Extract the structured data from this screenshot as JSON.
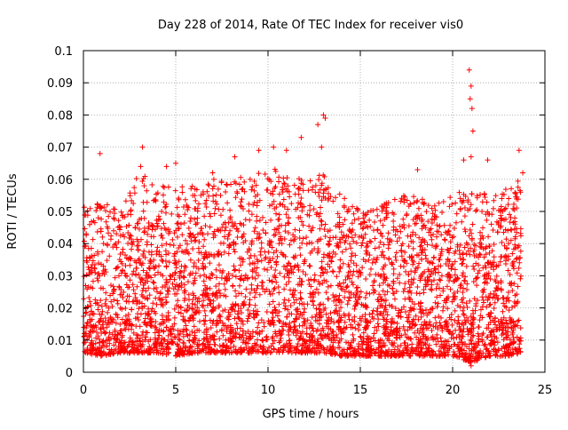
{
  "chart_data": {
    "type": "scatter",
    "title": "Day 228 of 2014, Rate Of TEC Index for receiver vis0",
    "xlabel": "GPS time / hours",
    "ylabel": "ROTI / TECUs",
    "xlim": [
      0,
      25
    ],
    "ylim": [
      0,
      0.1
    ],
    "xticks": [
      "0",
      "5",
      "10",
      "15",
      "20",
      "25"
    ],
    "yticks": [
      "0",
      "0.01",
      "0.02",
      "0.03",
      "0.04",
      "0.05",
      "0.06",
      "0.07",
      "0.08",
      "0.09",
      "0.1"
    ],
    "grid": true,
    "marker": "plus",
    "color": "#ff0000",
    "series": [
      {
        "x_range": [
          0.0,
          23.7
        ],
        "band_profile": [
          {
            "x": 0.0,
            "min": 0.006,
            "max": 0.052
          },
          {
            "x": 1.0,
            "min": 0.005,
            "max": 0.053
          },
          {
            "x": 2.0,
            "min": 0.006,
            "max": 0.05
          },
          {
            "x": 3.0,
            "min": 0.006,
            "max": 0.062
          },
          {
            "x": 4.0,
            "min": 0.006,
            "max": 0.06
          },
          {
            "x": 5.0,
            "min": 0.005,
            "max": 0.058
          },
          {
            "x": 6.0,
            "min": 0.006,
            "max": 0.06
          },
          {
            "x": 7.0,
            "min": 0.006,
            "max": 0.06
          },
          {
            "x": 8.0,
            "min": 0.006,
            "max": 0.062
          },
          {
            "x": 9.0,
            "min": 0.006,
            "max": 0.06
          },
          {
            "x": 10.0,
            "min": 0.006,
            "max": 0.064
          },
          {
            "x": 11.0,
            "min": 0.006,
            "max": 0.062
          },
          {
            "x": 12.0,
            "min": 0.006,
            "max": 0.06
          },
          {
            "x": 13.0,
            "min": 0.006,
            "max": 0.062
          },
          {
            "x": 14.0,
            "min": 0.005,
            "max": 0.055
          },
          {
            "x": 15.0,
            "min": 0.005,
            "max": 0.05
          },
          {
            "x": 16.0,
            "min": 0.005,
            "max": 0.052
          },
          {
            "x": 17.0,
            "min": 0.005,
            "max": 0.055
          },
          {
            "x": 18.0,
            "min": 0.005,
            "max": 0.055
          },
          {
            "x": 19.0,
            "min": 0.005,
            "max": 0.052
          },
          {
            "x": 20.0,
            "min": 0.005,
            "max": 0.055
          },
          {
            "x": 21.0,
            "min": 0.003,
            "max": 0.058
          },
          {
            "x": 22.0,
            "min": 0.005,
            "max": 0.055
          },
          {
            "x": 23.0,
            "min": 0.005,
            "max": 0.058
          },
          {
            "x": 23.7,
            "min": 0.006,
            "max": 0.06
          }
        ],
        "outliers": [
          {
            "x": 0.9,
            "y": 0.068
          },
          {
            "x": 3.2,
            "y": 0.07
          },
          {
            "x": 3.1,
            "y": 0.064
          },
          {
            "x": 4.5,
            "y": 0.064
          },
          {
            "x": 5.0,
            "y": 0.065
          },
          {
            "x": 7.0,
            "y": 0.062
          },
          {
            "x": 8.2,
            "y": 0.067
          },
          {
            "x": 9.5,
            "y": 0.069
          },
          {
            "x": 10.3,
            "y": 0.07
          },
          {
            "x": 11.0,
            "y": 0.069
          },
          {
            "x": 11.8,
            "y": 0.073
          },
          {
            "x": 12.7,
            "y": 0.077
          },
          {
            "x": 13.0,
            "y": 0.08
          },
          {
            "x": 13.1,
            "y": 0.079
          },
          {
            "x": 12.9,
            "y": 0.07
          },
          {
            "x": 18.1,
            "y": 0.063
          },
          {
            "x": 20.6,
            "y": 0.066
          },
          {
            "x": 20.9,
            "y": 0.094
          },
          {
            "x": 21.0,
            "y": 0.089
          },
          {
            "x": 20.95,
            "y": 0.085
          },
          {
            "x": 21.05,
            "y": 0.082
          },
          {
            "x": 21.1,
            "y": 0.075
          },
          {
            "x": 21.0,
            "y": 0.067
          },
          {
            "x": 21.9,
            "y": 0.066
          },
          {
            "x": 23.6,
            "y": 0.069
          },
          {
            "x": 23.8,
            "y": 0.062
          },
          {
            "x": 21.0,
            "y": 0.002
          }
        ]
      }
    ]
  }
}
